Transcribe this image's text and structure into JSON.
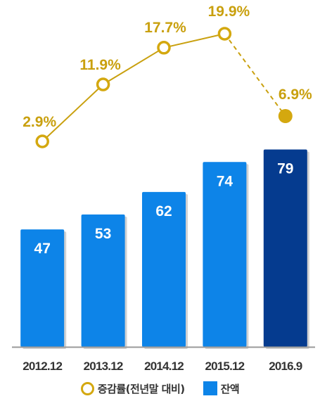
{
  "chart_data": {
    "type": "bar",
    "categories": [
      "2012.12",
      "2013.12",
      "2014.12",
      "2015.12",
      "2016.9"
    ],
    "series": [
      {
        "name": "잔액",
        "type": "bar",
        "values": [
          47,
          53,
          62,
          74,
          79
        ]
      },
      {
        "name": "증감률(전년말 대비)",
        "type": "line",
        "values": [
          2.9,
          11.9,
          17.7,
          19.9,
          6.9
        ],
        "labels": [
          "2.9%",
          "11.9%",
          "17.7%",
          "19.9%",
          "6.9%"
        ]
      }
    ],
    "value_labels": [
      "47",
      "53",
      "62",
      "74",
      "79"
    ],
    "legend_position": "bottom",
    "grid": false
  },
  "legend": {
    "rate_label": "증감률(전년말 대비)",
    "balance_label": "잔액"
  },
  "colors": {
    "bar": "#0d84e8",
    "bar_highlight": "#053b8f",
    "line": "#c9a00e",
    "marker_fill_last": "#d4a80f",
    "axis": "#9a9a9a"
  }
}
